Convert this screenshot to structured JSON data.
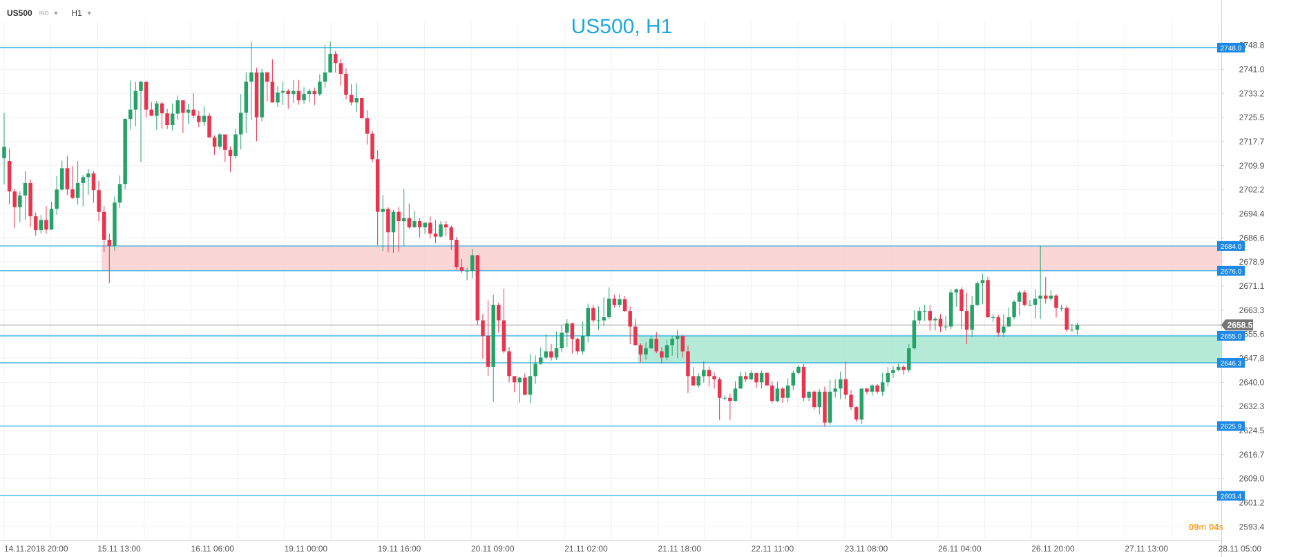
{
  "toolbar": {
    "symbol": "US500",
    "exchange": "IND",
    "timeframe": "H1",
    "symbol_chevron_icon": "chevron-down-icon",
    "timeframe_chevron_icon": "chevron-down-icon"
  },
  "timer": {
    "minutes": "09",
    "m_unit": "m",
    "seconds": "04",
    "s_unit": "s"
  },
  "colors": {
    "up": "#26a269",
    "down": "#e8344e",
    "level_line": "#1da8e0",
    "badge": "#1e88e5",
    "current_badge": "#757575",
    "resistance_zone": "#f9cfcf",
    "support_zone": "#a8e6cf",
    "title": "#1da8e0",
    "timer": "#f4a020"
  },
  "chart_data": {
    "type": "candlestick",
    "title": "US500, H1",
    "ylim": [
      2589.0,
      2754.0
    ],
    "y_ticks": [
      "2748.8",
      "2741.0",
      "2733.2",
      "2725.5",
      "2717.7",
      "2709.9",
      "2702.2",
      "2694.4",
      "2686.6",
      "2678.9",
      "2671.1",
      "2663.3",
      "2655.6",
      "2647.8",
      "2640.0",
      "2632.3",
      "2624.5",
      "2616.7",
      "2609.0",
      "2601.2",
      "2593.4"
    ],
    "x_ticks": [
      "14.11.2018  20:00",
      "15.11  13:00",
      "16.11  06:00",
      "19.11  00:00",
      "19.11  16:00",
      "20.11  09:00",
      "21.11  02:00",
      "21.11  18:00",
      "22.11  11:00",
      "23.11  08:00",
      "26.11  04:00",
      "26.11  20:00",
      "27.11  13:00",
      "28.11  05:00"
    ],
    "levels": [
      {
        "value": 2748.0,
        "label": "2748.0"
      },
      {
        "value": 2684.0,
        "label": "2684.0"
      },
      {
        "value": 2676.0,
        "label": "2676.0"
      },
      {
        "value": 2655.0,
        "label": "2655.0"
      },
      {
        "value": 2646.3,
        "label": "2646.3"
      },
      {
        "value": 2625.9,
        "label": "2625.9"
      },
      {
        "value": 2603.4,
        "label": "2603.4"
      }
    ],
    "current_price": {
      "value": 2658.5,
      "label": "2658.5"
    },
    "zones": [
      {
        "kind": "resistance",
        "from_bar": 19,
        "top": 2684.0,
        "bottom": 2676.0
      },
      {
        "kind": "support",
        "from_bar": 121,
        "top": 2655.0,
        "bottom": 2646.3
      }
    ],
    "candles": [
      [
        2712.3,
        2716.0,
        2727.0,
        2703.9
      ],
      [
        2711.4,
        2701.6,
        2715.4,
        2697.6
      ],
      [
        2701.6,
        2696.5,
        2702.4,
        2689.7
      ],
      [
        2696.5,
        2700.3,
        2701.7,
        2691.8
      ],
      [
        2700.3,
        2704.3,
        2708.2,
        2692.5
      ],
      [
        2704.3,
        2693.6,
        2705.5,
        2690.1
      ],
      [
        2693.6,
        2689.1,
        2694.8,
        2687.3
      ],
      [
        2689.1,
        2692.4,
        2694.0,
        2688.1
      ],
      [
        2692.4,
        2689.3,
        2696.9,
        2688.0
      ],
      [
        2689.3,
        2696.0,
        2698.2,
        2689.2
      ],
      [
        2696.0,
        2702.2,
        2706.6,
        2694.1
      ],
      [
        2702.2,
        2709.1,
        2711.5,
        2701.9
      ],
      [
        2709.1,
        2702.3,
        2713.1,
        2700.4
      ],
      [
        2702.3,
        2699.5,
        2709.8,
        2699.1
      ],
      [
        2699.5,
        2704.3,
        2711.4,
        2697.3
      ],
      [
        2704.3,
        2706.2,
        2706.9,
        2696.8
      ],
      [
        2706.2,
        2707.4,
        2708.8,
        2700.5
      ],
      [
        2707.4,
        2702.0,
        2708.1,
        2698.0
      ],
      [
        2702.0,
        2695.0,
        2705.0,
        2692.0
      ],
      [
        2695.0,
        2686.0,
        2696.9,
        2682.0
      ],
      [
        2686.0,
        2684.0,
        2688.0,
        2672.0
      ],
      [
        2684.0,
        2698.0,
        2700.0,
        2682.5
      ],
      [
        2698.0,
        2704.0,
        2706.8,
        2696.2
      ],
      [
        2704.0,
        2725.0,
        2725.2,
        2702.2
      ],
      [
        2725.0,
        2728.0,
        2737.4,
        2721.6
      ],
      [
        2728.0,
        2734.0,
        2737.0,
        2722.6
      ],
      [
        2734.0,
        2737.0,
        2737.2,
        2711.0
      ],
      [
        2737.0,
        2728.0,
        2733.0,
        2725.4
      ],
      [
        2728.0,
        2726.0,
        2730.5,
        2726.8
      ],
      [
        2726.0,
        2730.0,
        2730.8,
        2721.5
      ],
      [
        2730.0,
        2726.8,
        2730.7,
        2721.8
      ],
      [
        2726.8,
        2723.0,
        2728.2,
        2721.7
      ],
      [
        2723.0,
        2726.7,
        2730.0,
        2721.3
      ],
      [
        2726.7,
        2731.0,
        2732.6,
        2724.7
      ],
      [
        2731.0,
        2727.0,
        2730.8,
        2720.5
      ],
      [
        2727.0,
        2728.0,
        2729.9,
        2723.3
      ],
      [
        2728.0,
        2726.0,
        2733.3,
        2725.3
      ],
      [
        2726.0,
        2724.0,
        2727.6,
        2722.3
      ],
      [
        2724.0,
        2726.0,
        2729.0,
        2722.8
      ],
      [
        2726.0,
        2719.0,
        2727.0,
        2719.4
      ],
      [
        2719.0,
        2716.0,
        2719.7,
        2713.4
      ],
      [
        2716.0,
        2720.0,
        2720.5,
        2715.1
      ],
      [
        2720.0,
        2715.0,
        2718.0,
        2711.1
      ],
      [
        2715.0,
        2713.0,
        2716.1,
        2707.9
      ],
      [
        2713.0,
        2720.0,
        2721.8,
        2712.2
      ],
      [
        2720.0,
        2727.0,
        2733.0,
        2715.1
      ],
      [
        2727.0,
        2737.0,
        2740.0,
        2720.5
      ],
      [
        2737.0,
        2740.0,
        2749.9,
        2724.6
      ],
      [
        2740.0,
        2725.5,
        2741.5,
        2717.8
      ],
      [
        2725.5,
        2740.0,
        2741.2,
        2724.2
      ],
      [
        2740.0,
        2737.0,
        2740.3,
        2730.6
      ],
      [
        2737.0,
        2730.3,
        2744.2,
        2730.3
      ],
      [
        2730.3,
        2733.5,
        2735.6,
        2728.8
      ],
      [
        2733.5,
        2734.0,
        2737.0,
        2729.5
      ],
      [
        2734.0,
        2733.0,
        2734.6,
        2728.2
      ],
      [
        2733.0,
        2734.0,
        2737.5,
        2730.1
      ],
      [
        2734.0,
        2731.0,
        2737.6,
        2729.6
      ],
      [
        2731.0,
        2733.0,
        2735.2,
        2729.9
      ],
      [
        2733.0,
        2734.0,
        2734.7,
        2730.3
      ],
      [
        2734.0,
        2733.0,
        2735.1,
        2729.5
      ],
      [
        2733.0,
        2737.0,
        2739.4,
        2732.4
      ],
      [
        2737.0,
        2740.0,
        2748.8,
        2735.1
      ],
      [
        2740.0,
        2746.0,
        2749.9,
        2739.9
      ],
      [
        2746.0,
        2743.0,
        2746.9,
        2739.9
      ],
      [
        2743.0,
        2739.5,
        2744.4,
        2735.7
      ],
      [
        2739.5,
        2732.8,
        2741.3,
        2731.3
      ],
      [
        2732.8,
        2730.3,
        2736.3,
        2729.4
      ],
      [
        2730.3,
        2731.7,
        2736.5,
        2727.3
      ],
      [
        2731.7,
        2725.2,
        2731.4,
        2725.6
      ],
      [
        2725.2,
        2720.2,
        2727.8,
        2716.7
      ],
      [
        2720.2,
        2712.0,
        2721.1,
        2711.0
      ],
      [
        2712.0,
        2695.0,
        2714.8,
        2684.2
      ],
      [
        2695.0,
        2696.0,
        2700.5,
        2682.4
      ],
      [
        2696.0,
        2688.4,
        2696.5,
        2681.9
      ],
      [
        2688.4,
        2695.0,
        2695.6,
        2681.8
      ],
      [
        2695.0,
        2692.0,
        2696.5,
        2682.2
      ],
      [
        2692.0,
        2693.0,
        2702.4,
        2683.9
      ],
      [
        2693.0,
        2690.0,
        2697.7,
        2689.6
      ],
      [
        2690.0,
        2692.0,
        2695.3,
        2690.1
      ],
      [
        2692.0,
        2690.0,
        2693.0,
        2686.7
      ],
      [
        2690.0,
        2691.5,
        2691.7,
        2688.0
      ],
      [
        2691.5,
        2688.0,
        2693.5,
        2686.4
      ],
      [
        2688.0,
        2687.0,
        2692.4,
        2684.9
      ],
      [
        2687.0,
        2691.0,
        2692.0,
        2686.7
      ],
      [
        2691.0,
        2690.0,
        2692.0,
        2687.1
      ],
      [
        2690.0,
        2686.0,
        2690.6,
        2682.7
      ],
      [
        2686.0,
        2677.2,
        2686.9,
        2676.3
      ],
      [
        2677.2,
        2676.0,
        2679.8,
        2675.3
      ],
      [
        2676.0,
        2676.0,
        2677.0,
        2672.9
      ],
      [
        2676.0,
        2681.0,
        2683.1,
        2673.6
      ],
      [
        2681.0,
        2660.0,
        2681.1,
        2658.5
      ],
      [
        2660.0,
        2655.0,
        2662.0,
        2647.7
      ],
      [
        2655.0,
        2645.0,
        2666.5,
        2642.0
      ],
      [
        2645.0,
        2665.0,
        2668.3,
        2633.6
      ],
      [
        2665.0,
        2660.0,
        2665.7,
        2656.0
      ],
      [
        2660.0,
        2650.0,
        2670.2,
        2649.3
      ],
      [
        2650.0,
        2642.0,
        2651.4,
        2640.0
      ],
      [
        2642.0,
        2640.0,
        2641.8,
        2636.8
      ],
      [
        2640.0,
        2641.5,
        2641.8,
        2633.5
      ],
      [
        2641.5,
        2636.0,
        2642.9,
        2635.9
      ],
      [
        2636.0,
        2642.0,
        2649.2,
        2633.3
      ],
      [
        2642.0,
        2646.0,
        2648.7,
        2639.5
      ],
      [
        2646.0,
        2648.0,
        2651.3,
        2645.7
      ],
      [
        2648.0,
        2650.0,
        2655.5,
        2647.5
      ],
      [
        2650.0,
        2648.0,
        2652.4,
        2647.0
      ],
      [
        2648.0,
        2651.0,
        2656.4,
        2647.2
      ],
      [
        2651.0,
        2656.0,
        2658.5,
        2649.7
      ],
      [
        2656.0,
        2659.0,
        2660.4,
        2651.5
      ],
      [
        2659.0,
        2654.0,
        2659.3,
        2649.3
      ],
      [
        2654.0,
        2650.0,
        2654.5,
        2648.9
      ],
      [
        2650.0,
        2655.0,
        2659.7,
        2649.0
      ],
      [
        2655.0,
        2664.0,
        2665.4,
        2652.9
      ],
      [
        2664.0,
        2660.0,
        2665.0,
        2659.1
      ],
      [
        2660.0,
        2660.0,
        2664.5,
        2656.9
      ],
      [
        2660.0,
        2661.0,
        2667.4,
        2658.2
      ],
      [
        2661.0,
        2667.0,
        2670.6,
        2660.5
      ],
      [
        2667.0,
        2665.0,
        2668.3,
        2664.1
      ],
      [
        2665.0,
        2666.8,
        2668.4,
        2664.2
      ],
      [
        2666.8,
        2663.0,
        2667.9,
        2662.7
      ],
      [
        2663.0,
        2658.0,
        2664.5,
        2652.3
      ],
      [
        2658.0,
        2652.0,
        2660.4,
        2652.1
      ],
      [
        2652.0,
        2649.0,
        2652.6,
        2646.5
      ],
      [
        2649.0,
        2651.0,
        2652.9,
        2647.3
      ],
      [
        2651.0,
        2654.0,
        2654.9,
        2650.7
      ],
      [
        2654.0,
        2650.0,
        2656.3,
        2649.4
      ],
      [
        2650.0,
        2648.0,
        2651.4,
        2646.1
      ],
      [
        2648.0,
        2652.0,
        2653.8,
        2647.1
      ],
      [
        2652.0,
        2654.0,
        2655.1,
        2648.6
      ],
      [
        2654.0,
        2655.0,
        2657.0,
        2647.8
      ],
      [
        2655.0,
        2650.0,
        2655.4,
        2648.0
      ],
      [
        2650.0,
        2642.0,
        2651.8,
        2636.5
      ],
      [
        2642.0,
        2639.0,
        2644.9,
        2638.9
      ],
      [
        2639.0,
        2642.0,
        2643.0,
        2638.3
      ],
      [
        2642.0,
        2644.0,
        2646.8,
        2639.9
      ],
      [
        2644.0,
        2642.0,
        2645.1,
        2638.7
      ],
      [
        2642.0,
        2641.0,
        2643.3,
        2638.0
      ],
      [
        2641.0,
        2635.0,
        2641.7,
        2627.9
      ],
      [
        2635.0,
        2635.0,
        2635.9,
        2634.2
      ],
      [
        2635.0,
        2634.0,
        2636.4,
        2627.9
      ],
      [
        2634.0,
        2638.0,
        2640.3,
        2633.8
      ],
      [
        2638.0,
        2642.0,
        2643.5,
        2637.9
      ],
      [
        2642.0,
        2641.0,
        2643.3,
        2640.1
      ],
      [
        2641.0,
        2643.0,
        2643.8,
        2640.7
      ],
      [
        2643.0,
        2640.0,
        2642.8,
        2638.2
      ],
      [
        2640.0,
        2643.0,
        2643.8,
        2638.0
      ],
      [
        2643.0,
        2639.0,
        2643.4,
        2638.9
      ],
      [
        2639.0,
        2634.0,
        2640.3,
        2633.3
      ],
      [
        2634.0,
        2638.0,
        2640.2,
        2633.6
      ],
      [
        2638.0,
        2635.0,
        2638.4,
        2633.4
      ],
      [
        2635.0,
        2639.0,
        2641.3,
        2633.6
      ],
      [
        2639.0,
        2643.0,
        2643.8,
        2637.5
      ],
      [
        2643.0,
        2645.0,
        2645.6,
        2642.7
      ],
      [
        2645.0,
        2635.0,
        2645.9,
        2634.0
      ],
      [
        2635.0,
        2637.0,
        2637.0,
        2633.9
      ],
      [
        2637.0,
        2632.0,
        2637.4,
        2631.3
      ],
      [
        2632.0,
        2637.0,
        2637.8,
        2629.6
      ],
      [
        2637.0,
        2627.0,
        2638.6,
        2625.7
      ],
      [
        2627.0,
        2637.0,
        2640.8,
        2626.3
      ],
      [
        2637.0,
        2638.0,
        2641.0,
        2635.0
      ],
      [
        2638.0,
        2641.0,
        2643.5,
        2634.6
      ],
      [
        2641.0,
        2636.0,
        2646.8,
        2634.5
      ],
      [
        2636.0,
        2632.0,
        2637.6,
        2631.1
      ],
      [
        2632.0,
        2628.0,
        2632.4,
        2627.3
      ],
      [
        2628.0,
        2638.0,
        2638.0,
        2626.5
      ],
      [
        2638.0,
        2637.0,
        2638.1,
        2636.2
      ],
      [
        2637.0,
        2639.0,
        2639.4,
        2635.7
      ],
      [
        2639.0,
        2637.0,
        2639.4,
        2636.3
      ],
      [
        2637.0,
        2640.0,
        2643.1,
        2635.7
      ],
      [
        2640.0,
        2643.0,
        2645.0,
        2638.6
      ],
      [
        2643.0,
        2644.0,
        2645.4,
        2641.4
      ],
      [
        2644.0,
        2645.0,
        2646.0,
        2643.6
      ],
      [
        2645.0,
        2644.0,
        2645.6,
        2642.4
      ],
      [
        2644.0,
        2651.0,
        2652.3,
        2643.2
      ],
      [
        2651.0,
        2660.0,
        2663.2,
        2650.6
      ],
      [
        2660.0,
        2663.0,
        2664.3,
        2658.8
      ],
      [
        2663.0,
        2663.0,
        2665.1,
        2659.9
      ],
      [
        2663.0,
        2660.0,
        2664.9,
        2656.7
      ],
      [
        2660.0,
        2660.5,
        2661.1,
        2656.7
      ],
      [
        2660.5,
        2658.0,
        2662.0,
        2656.2
      ],
      [
        2658.0,
        2658.0,
        2661.5,
        2656.7
      ],
      [
        2658.0,
        2669.0,
        2670.0,
        2657.2
      ],
      [
        2669.0,
        2670.0,
        2670.3,
        2664.4
      ],
      [
        2670.0,
        2663.0,
        2670.7,
        2657.2
      ],
      [
        2663.0,
        2657.0,
        2668.9,
        2652.3
      ],
      [
        2657.0,
        2665.0,
        2667.9,
        2654.6
      ],
      [
        2665.0,
        2672.0,
        2672.6,
        2664.5
      ],
      [
        2672.0,
        2673.0,
        2675.1,
        2665.2
      ],
      [
        2673.0,
        2661.0,
        2674.0,
        2660.9
      ],
      [
        2661.0,
        2661.0,
        2662.0,
        2659.5
      ],
      [
        2661.0,
        2656.0,
        2661.8,
        2654.7
      ],
      [
        2656.0,
        2658.0,
        2661.9,
        2654.6
      ],
      [
        2658.0,
        2661.0,
        2664.2,
        2658.4
      ],
      [
        2661.0,
        2666.0,
        2666.6,
        2660.3
      ],
      [
        2666.0,
        2669.0,
        2669.6,
        2661.6
      ],
      [
        2669.0,
        2665.0,
        2669.7,
        2664.5
      ],
      [
        2665.0,
        2665.0,
        2666.6,
        2664.7
      ],
      [
        2665.0,
        2667.0,
        2670.0,
        2660.5
      ],
      [
        2667.0,
        2668.0,
        2684.0,
        2660.4
      ],
      [
        2668.0,
        2667.0,
        2674.0,
        2665.4
      ],
      [
        2667.0,
        2668.0,
        2669.8,
        2666.4
      ],
      [
        2668.0,
        2664.0,
        2668.4,
        2660.9
      ],
      [
        2664.0,
        2664.0,
        2665.1,
        2662.9
      ],
      [
        2664.0,
        2657.0,
        2664.8,
        2656.3
      ],
      [
        2657.0,
        2657.0,
        2658.8,
        2656.3
      ],
      [
        2657.0,
        2658.5,
        2659.3,
        2655.3
      ]
    ]
  }
}
